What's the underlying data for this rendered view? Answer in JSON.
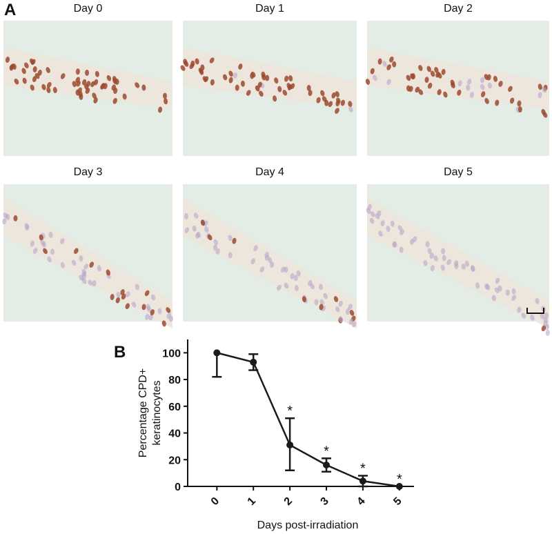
{
  "panels": {
    "a_label": "A",
    "b_label": "B"
  },
  "images": [
    {
      "title": "Day 0",
      "staining": 1.0
    },
    {
      "title": "Day 1",
      "staining": 0.9
    },
    {
      "title": "Day 2",
      "staining": 0.75
    },
    {
      "title": "Day 3",
      "staining": 0.2
    },
    {
      "title": "Day 4",
      "staining": 0.12
    },
    {
      "title": "Day 5",
      "staining": 0.03
    }
  ],
  "chart_data": {
    "type": "line",
    "xlabel": "Days post-irradiation",
    "ylabel": [
      "Percentage CPD+",
      "keratinocytes"
    ],
    "x": [
      0,
      1,
      2,
      3,
      4,
      5
    ],
    "values": [
      100,
      93,
      31,
      16,
      4,
      0
    ],
    "error_minus": [
      18,
      6,
      19,
      5,
      4,
      0
    ],
    "error_plus": [
      0,
      6,
      20,
      5,
      4,
      0
    ],
    "color": "#1a1a1a",
    "xlim": [
      -0.8,
      5.4
    ],
    "xticks": [
      0,
      1,
      2,
      3,
      4,
      5
    ],
    "ylim": [
      0,
      110
    ],
    "yticks": [
      0,
      20,
      40,
      60,
      80,
      100
    ],
    "annotations": [
      {
        "x": 2,
        "text": "*"
      },
      {
        "x": 3,
        "text": "*"
      },
      {
        "x": 4,
        "text": "*"
      },
      {
        "x": 5,
        "text": "*"
      }
    ]
  }
}
